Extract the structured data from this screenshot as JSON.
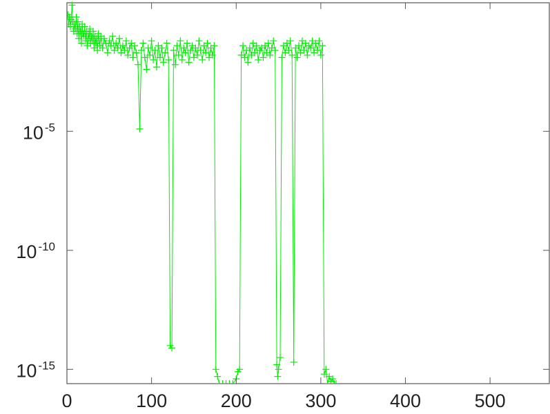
{
  "chart_data": {
    "type": "scatter",
    "connected": true,
    "marker": "plus",
    "line_color": "#00ee00",
    "marker_color": "#00ee00",
    "title": "",
    "xlabel": "",
    "ylabel": "",
    "x_scale": "linear",
    "y_scale": "log",
    "xlim": [
      0,
      570
    ],
    "ylim_exponent": [
      -15.6,
      0.4
    ],
    "grid": false,
    "x_ticks": [
      {
        "value": 0,
        "label": "0"
      },
      {
        "value": 100,
        "label": "100"
      },
      {
        "value": 200,
        "label": "200"
      },
      {
        "value": 300,
        "label": "300"
      },
      {
        "value": 400,
        "label": "400"
      },
      {
        "value": 500,
        "label": "500"
      }
    ],
    "y_ticks": [
      {
        "exponent": -5,
        "base": "10",
        "power": "-5"
      },
      {
        "exponent": -10,
        "base": "10",
        "power": "-10"
      },
      {
        "exponent": -15,
        "base": "10",
        "power": "-15"
      }
    ],
    "series": [
      {
        "points_log10": [
          [
            0,
            -0.3
          ],
          [
            1,
            -0.1
          ],
          [
            2,
            -0.5
          ],
          [
            3,
            -0.2
          ],
          [
            4,
            -0.6
          ],
          [
            5,
            -0.3
          ],
          [
            6,
            0.3
          ],
          [
            7,
            -0.4
          ],
          [
            8,
            -0.8
          ],
          [
            9,
            -0.5
          ],
          [
            10,
            -0.7
          ],
          [
            11,
            -0.2
          ],
          [
            12,
            -0.9
          ],
          [
            13,
            -0.4
          ],
          [
            14,
            -1.1
          ],
          [
            15,
            -0.6
          ],
          [
            16,
            -0.8
          ],
          [
            17,
            -1.3
          ],
          [
            18,
            -0.5
          ],
          [
            19,
            -0.9
          ],
          [
            20,
            -1.0
          ],
          [
            21,
            -0.6
          ],
          [
            22,
            -1.2
          ],
          [
            23,
            -0.8
          ],
          [
            24,
            -1.4
          ],
          [
            25,
            -0.9
          ],
          [
            26,
            -1.1
          ],
          [
            27,
            -0.7
          ],
          [
            28,
            -1.3
          ],
          [
            29,
            -1.0
          ],
          [
            30,
            -1.2
          ],
          [
            31,
            -0.8
          ],
          [
            32,
            -1.5
          ],
          [
            33,
            -1.0
          ],
          [
            34,
            -1.3
          ],
          [
            35,
            -1.1
          ],
          [
            36,
            -1.6
          ],
          [
            37,
            -0.9
          ],
          [
            38,
            -1.2
          ],
          [
            39,
            -1.4
          ],
          [
            40,
            -1.0
          ],
          [
            42,
            -1.5
          ],
          [
            44,
            -1.1
          ],
          [
            46,
            -1.3
          ],
          [
            48,
            -1.7
          ],
          [
            50,
            -1.2
          ],
          [
            52,
            -1.4
          ],
          [
            54,
            -1.0
          ],
          [
            56,
            -1.6
          ],
          [
            58,
            -1.3
          ],
          [
            60,
            -1.5
          ],
          [
            62,
            -1.1
          ],
          [
            64,
            -1.7
          ],
          [
            66,
            -1.4
          ],
          [
            68,
            -1.6
          ],
          [
            70,
            -1.2
          ],
          [
            72,
            -1.8
          ],
          [
            74,
            -1.5
          ],
          [
            76,
            -1.3
          ],
          [
            78,
            -1.9
          ],
          [
            80,
            -1.4
          ],
          [
            82,
            -1.7
          ],
          [
            84,
            -2.2
          ],
          [
            86,
            -4.9
          ],
          [
            88,
            -1.6
          ],
          [
            90,
            -1.3
          ],
          [
            92,
            -1.9
          ],
          [
            94,
            -2.4
          ],
          [
            96,
            -1.5
          ],
          [
            98,
            -1.8
          ],
          [
            100,
            -1.2
          ],
          [
            102,
            -2.0
          ],
          [
            104,
            -1.6
          ],
          [
            106,
            -2.3
          ],
          [
            108,
            -1.4
          ],
          [
            110,
            -1.9
          ],
          [
            112,
            -1.5
          ],
          [
            114,
            -2.1
          ],
          [
            116,
            -1.7
          ],
          [
            118,
            -1.3
          ],
          [
            120,
            -2.0
          ],
          [
            122,
            -14.0
          ],
          [
            124,
            -14.1
          ],
          [
            126,
            -1.6
          ],
          [
            128,
            -2.2
          ],
          [
            130,
            -1.4
          ],
          [
            132,
            -1.8
          ],
          [
            134,
            -1.2
          ],
          [
            136,
            -2.0
          ],
          [
            138,
            -1.5
          ],
          [
            140,
            -1.7
          ],
          [
            142,
            -1.3
          ],
          [
            144,
            -2.1
          ],
          [
            146,
            -1.6
          ],
          [
            148,
            -1.4
          ],
          [
            150,
            -1.9
          ],
          [
            152,
            -1.5
          ],
          [
            154,
            -1.8
          ],
          [
            156,
            -1.2
          ],
          [
            158,
            -1.6
          ],
          [
            160,
            -2.0
          ],
          [
            162,
            -1.4
          ],
          [
            164,
            -1.7
          ],
          [
            166,
            -1.3
          ],
          [
            168,
            -1.9
          ],
          [
            170,
            -1.5
          ],
          [
            172,
            -1.8
          ],
          [
            174,
            -1.4
          ],
          [
            176,
            -15.0
          ],
          [
            178,
            -15.3
          ],
          [
            180,
            -15.6
          ],
          [
            184,
            -15.6
          ],
          [
            188,
            -15.6
          ],
          [
            192,
            -15.6
          ],
          [
            196,
            -15.6
          ],
          [
            200,
            -15.4
          ],
          [
            202,
            -15.1
          ],
          [
            204,
            -15.0
          ],
          [
            206,
            -1.8
          ],
          [
            208,
            -1.4
          ],
          [
            210,
            -1.9
          ],
          [
            212,
            -1.6
          ],
          [
            214,
            -2.1
          ],
          [
            216,
            -1.5
          ],
          [
            218,
            -1.8
          ],
          [
            220,
            -1.3
          ],
          [
            222,
            -1.7
          ],
          [
            224,
            -1.4
          ],
          [
            226,
            -2.0
          ],
          [
            228,
            -1.6
          ],
          [
            230,
            -1.5
          ],
          [
            232,
            -1.9
          ],
          [
            234,
            -1.4
          ],
          [
            236,
            -1.7
          ],
          [
            238,
            -1.3
          ],
          [
            240,
            -1.8
          ],
          [
            242,
            -1.5
          ],
          [
            244,
            -1.2
          ],
          [
            246,
            -1.6
          ],
          [
            248,
            -14.8
          ],
          [
            249,
            -15.3
          ],
          [
            250,
            -15.0
          ],
          [
            252,
            -14.5
          ],
          [
            254,
            -1.9
          ],
          [
            256,
            -1.4
          ],
          [
            258,
            -1.7
          ],
          [
            260,
            -1.3
          ],
          [
            262,
            -1.6
          ],
          [
            264,
            -1.2
          ],
          [
            266,
            -1.8
          ],
          [
            268,
            -14.7
          ],
          [
            270,
            -1.5
          ],
          [
            272,
            -1.9
          ],
          [
            274,
            -1.4
          ],
          [
            276,
            -1.7
          ],
          [
            278,
            -1.2
          ],
          [
            280,
            -1.6
          ],
          [
            282,
            -1.3
          ],
          [
            284,
            -1.8
          ],
          [
            286,
            -1.4
          ],
          [
            288,
            -1.5
          ],
          [
            290,
            -1.2
          ],
          [
            292,
            -1.7
          ],
          [
            294,
            -1.3
          ],
          [
            296,
            -1.6
          ],
          [
            298,
            -1.2
          ],
          [
            300,
            -1.8
          ],
          [
            302,
            -1.4
          ],
          [
            304,
            -15.2
          ],
          [
            306,
            -15.0
          ],
          [
            308,
            -15.6
          ],
          [
            310,
            -15.3
          ],
          [
            312,
            -15.5
          ],
          [
            314,
            -15.4
          ],
          [
            316,
            -15.6
          ],
          [
            318,
            -15.6
          ]
        ]
      }
    ]
  }
}
